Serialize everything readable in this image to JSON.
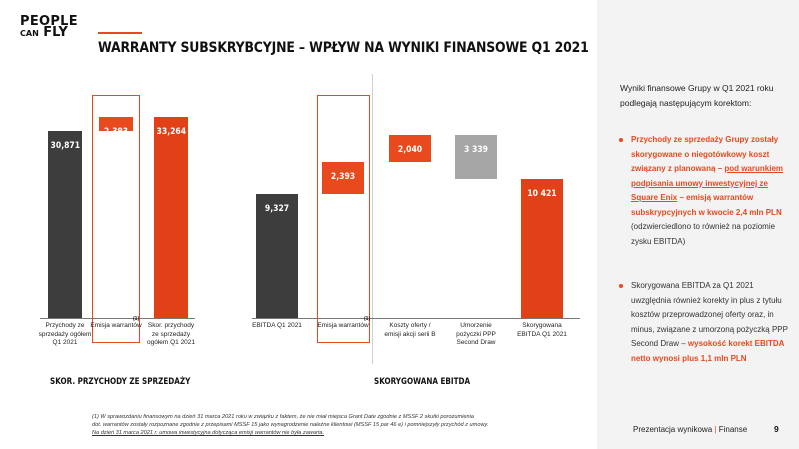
{
  "logo": {
    "line1": "PEOPLE",
    "line2a": "CAN",
    "line2b": "FLY"
  },
  "title": "WARRANTY SUBSKRYBCYJNE – WPŁYW NA WYNIKI FINANSOWE Q1 2021",
  "colors": {
    "accent": "#e8491d",
    "dark": "#3d3d3d",
    "grey": "#a6a6a6",
    "red_orange": "#e24117"
  },
  "chart_data": [
    {
      "type": "bar",
      "title": "SKOR. PRZYCHODY ZE SPRZEDAŻY",
      "categories": [
        "Przychody ze sprzedaży ogółem Q1 2021",
        "Emisja warrantów",
        "Skor. przychody ze sprzedaży ogółem Q1 2021"
      ],
      "values": [
        30871,
        2393,
        33264
      ],
      "value_labels": [
        "30,871",
        "2,393",
        "33,264"
      ],
      "footnote_marker": "(1)",
      "ylim": [
        0,
        34000
      ]
    },
    {
      "type": "bar",
      "title": "SKORYGOWANA EBITDA",
      "categories": [
        "EBITDA Q1 2021",
        "Emisja warrantów",
        "Koszty oferty / emisji akcji serii B",
        "Umorzenie pożyczki PPP Second Draw",
        "Skorygowana EBITDA Q1 2021"
      ],
      "values": [
        9327,
        2393,
        2040,
        -3339,
        10421
      ],
      "value_labels": [
        "9,327",
        "2,393",
        "2,040",
        "3 339",
        "10 421"
      ],
      "footnote_marker": "(1)",
      "ylim": [
        0,
        17000
      ]
    }
  ],
  "right_panel": {
    "intro": "Wyniki finansowe Grupy w Q1 2021 roku podlegają następującym korektom:",
    "bullet1": {
      "a": "Przychody ze sprzedaży Grupy zostały skorygowane o niegotówkowy koszt związany z planowaną – ",
      "b": "pod warunkiem podpisania umowy inwestycyjnej ze Square Enix",
      "c": " – emisją warrantów subskrypcyjnych w kwocie 2,4 mln PLN",
      "d": " (odzwierciedlono to również na poziomie zysku EBITDA)"
    },
    "bullet2": {
      "a": "Skorygowana EBITDA za Q1 2021 uwzględnia również korekty in plus z tytułu kosztów przeprowadzonej oferty oraz, in minus, związane z umorzoną pożyczką PPP Second Draw – ",
      "b": "wysokość korekt EBITDA netto wynosi plus 1,1 mln PLN"
    }
  },
  "footnote": {
    "line1": "(1) W sprawozdaniu finansowym na dzień 31 marca 2021 roku w związku z faktem, że nie miał miejsca Grant Date zgodnie z MSSF 2 skutki porozumienia",
    "line2": "dot. warrantów zostały rozpoznane zgodnie z przepisami MSSF 15 jako wynagrodzenie należne klientowi (MSSF 15 par 46 e) i pomniejszyły przychód z umowy.",
    "line3": "Na dzień 31 marca 2021 r. umowa inwestycyjna dotycząca emisji warrantów nie była zawarta."
  },
  "footer": {
    "label": "Prezentacja wynikowa",
    "separator": "|",
    "section": "Finanse",
    "page": "9"
  }
}
